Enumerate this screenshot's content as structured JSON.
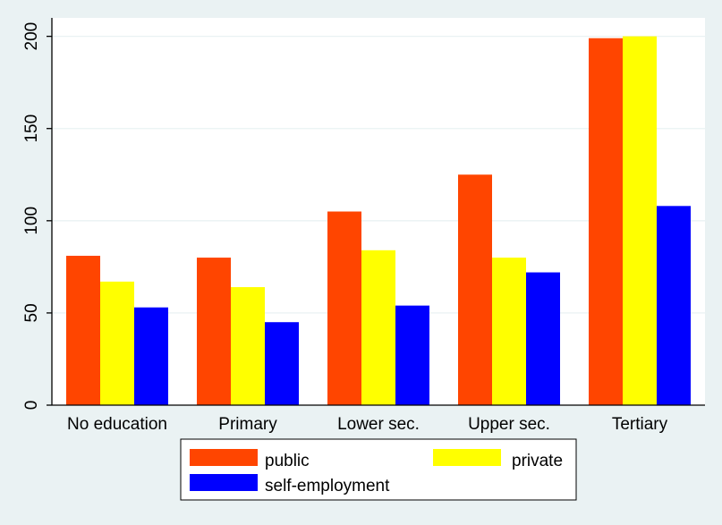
{
  "chart_data": {
    "type": "bar",
    "categories": [
      "No education",
      "Primary",
      "Lower sec.",
      "Upper sec.",
      "Tertiary"
    ],
    "series": [
      {
        "name": "public",
        "values": [
          81,
          80,
          105,
          125,
          199
        ]
      },
      {
        "name": "private",
        "values": [
          67,
          64,
          84,
          80,
          200
        ]
      },
      {
        "name": "self-employment",
        "values": [
          53,
          45,
          54,
          72,
          108
        ]
      }
    ],
    "y_ticks": [
      "0",
      "50",
      "100",
      "150",
      "200"
    ],
    "ylim": [
      0,
      210
    ],
    "grid": true,
    "legend_position": "bottom",
    "colors": {
      "public": "#ff4500",
      "private": "#ffff00",
      "self-employment": "#0000ff",
      "background": "#eaf2f3",
      "plot_background": "#ffffff",
      "grid": "#eaf2f3"
    }
  }
}
